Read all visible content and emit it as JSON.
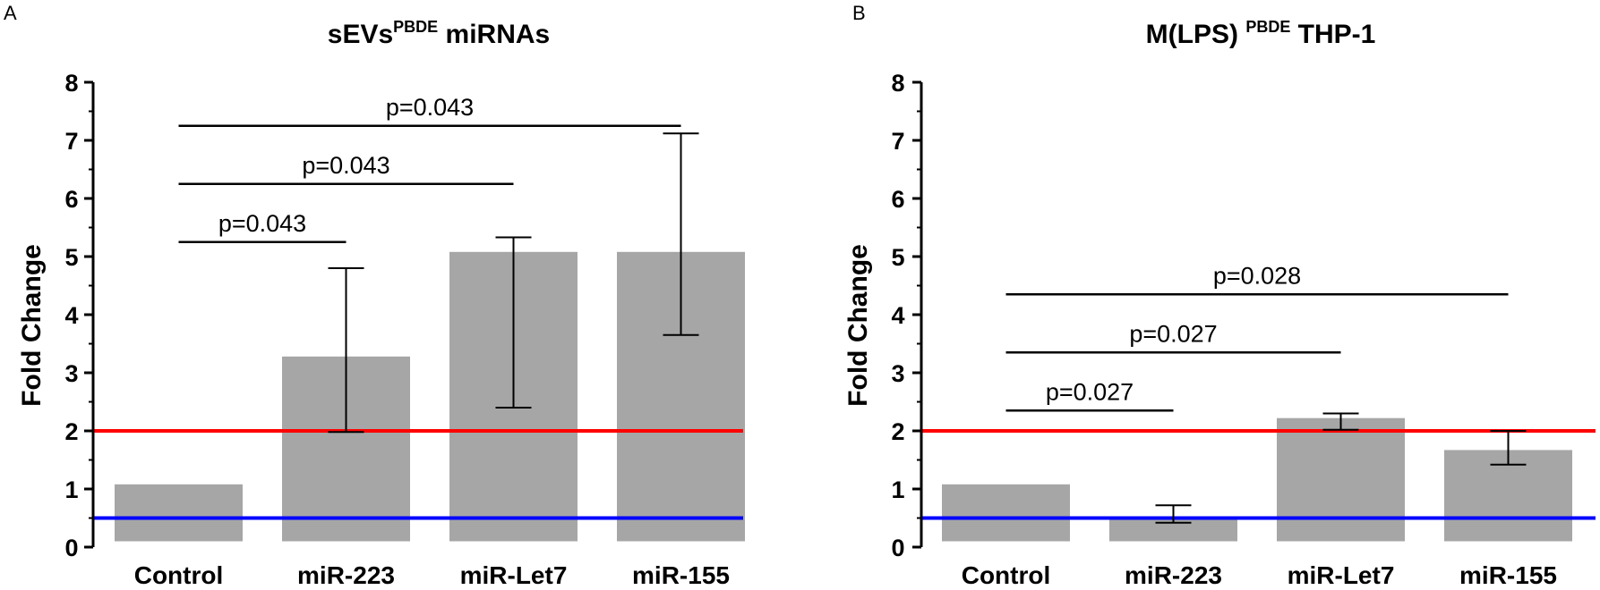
{
  "chart_data": [
    {
      "type": "bar",
      "panel": "A",
      "title": "sEVs",
      "title_superscript": "PBDE",
      "title_suffix": " miRNAs",
      "xlabel": "",
      "ylabel": "Fold Change",
      "ylim": [
        0,
        8
      ],
      "yticks": [
        "0",
        "1",
        "2",
        "3",
        "4",
        "5",
        "6",
        "7",
        "8"
      ],
      "categories": [
        "Control",
        "miR-223",
        "miR-Let7",
        "miR-155"
      ],
      "values": [
        1.08,
        3.28,
        5.08,
        5.08
      ],
      "error_low": [
        null,
        1.98,
        2.4,
        3.65
      ],
      "error_high": [
        null,
        4.8,
        5.33,
        7.12
      ],
      "bar_color": "#a6a6a6",
      "reference_lines": [
        {
          "value": 2.0,
          "color": "#ff0000"
        },
        {
          "value": 0.5,
          "color": "#0000ff"
        }
      ],
      "significance": [
        {
          "from": 0,
          "to": 1,
          "y": 5.25,
          "label": "p=0.043"
        },
        {
          "from": 0,
          "to": 2,
          "y": 6.25,
          "label": "p=0.043"
        },
        {
          "from": 0,
          "to": 3,
          "y": 7.25,
          "label": "p=0.043"
        }
      ]
    },
    {
      "type": "bar",
      "panel": "B",
      "title": "M(LPS) ",
      "title_superscript": "PBDE",
      "title_suffix": " THP-1",
      "xlabel": "",
      "ylabel": "Fold Change",
      "ylim": [
        0,
        8
      ],
      "yticks": [
        "0",
        "1",
        "2",
        "3",
        "4",
        "5",
        "6",
        "7",
        "8"
      ],
      "categories": [
        "Control",
        "miR-223",
        "miR-Let7",
        "miR-155"
      ],
      "values": [
        1.08,
        0.5,
        2.22,
        1.67
      ],
      "error_low": [
        null,
        0.42,
        2.02,
        1.42
      ],
      "error_high": [
        null,
        0.72,
        2.3,
        2.0
      ],
      "bar_color": "#a6a6a6",
      "reference_lines": [
        {
          "value": 2.0,
          "color": "#ff0000"
        },
        {
          "value": 0.5,
          "color": "#0000ff"
        }
      ],
      "significance": [
        {
          "from": 0,
          "to": 1,
          "y": 2.35,
          "label": "p=0.027"
        },
        {
          "from": 0,
          "to": 2,
          "y": 3.35,
          "label": "p=0.027"
        },
        {
          "from": 0,
          "to": 3,
          "y": 4.35,
          "label": "p=0.028"
        }
      ]
    }
  ]
}
